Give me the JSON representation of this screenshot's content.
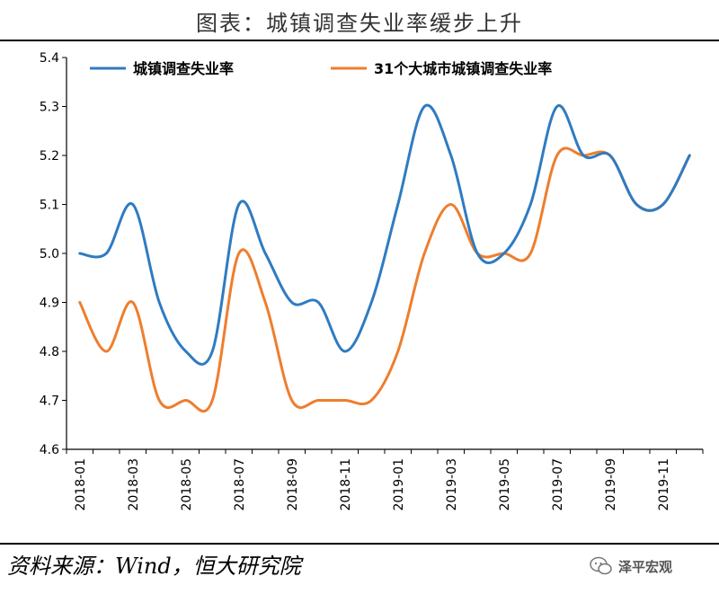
{
  "title": "图表：城镇调查失业率缓步上升",
  "source": "资料来源：Wind，恒大研究院",
  "watermark": "泽平宏观",
  "chart_data": {
    "type": "line",
    "ylim": [
      4.6,
      5.4
    ],
    "yticks": [
      "4.6",
      "4.7",
      "4.8",
      "4.9",
      "5.0",
      "5.1",
      "5.2",
      "5.3",
      "5.4"
    ],
    "x": [
      "2018-01",
      "2018-02",
      "2018-03",
      "2018-04",
      "2018-05",
      "2018-06",
      "2018-07",
      "2018-08",
      "2018-09",
      "2018-10",
      "2018-11",
      "2018-12",
      "2019-01",
      "2019-02",
      "2019-03",
      "2019-04",
      "2019-05",
      "2019-06",
      "2019-07",
      "2019-08",
      "2019-09",
      "2019-10",
      "2019-11",
      "2019-12"
    ],
    "xtick_labels": [
      "2018-01",
      "2018-03",
      "2018-05",
      "2018-07",
      "2018-09",
      "2018-11",
      "2019-01",
      "2019-03",
      "2019-05",
      "2019-07",
      "2019-09",
      "2019-11"
    ],
    "legend_position": "top",
    "grid": false,
    "series": [
      {
        "name": "城镇调查失业率",
        "color": "#2F7BC1",
        "values": [
          5.0,
          5.0,
          5.1,
          4.9,
          4.8,
          4.8,
          5.1,
          5.0,
          4.9,
          4.9,
          4.8,
          4.9,
          5.1,
          5.3,
          5.2,
          5.0,
          5.0,
          5.1,
          5.3,
          5.2,
          5.2,
          5.1,
          5.1,
          5.2
        ]
      },
      {
        "name": "31个大城市城镇调查失业率",
        "color": "#EE7E2D",
        "values": [
          4.9,
          4.8,
          4.9,
          4.7,
          4.7,
          4.7,
          5.0,
          4.9,
          4.7,
          4.7,
          4.7,
          4.7,
          4.8,
          5.0,
          5.1,
          5.0,
          5.0,
          5.0,
          5.2,
          5.2,
          5.2,
          5.1,
          5.1,
          5.2
        ]
      }
    ]
  }
}
